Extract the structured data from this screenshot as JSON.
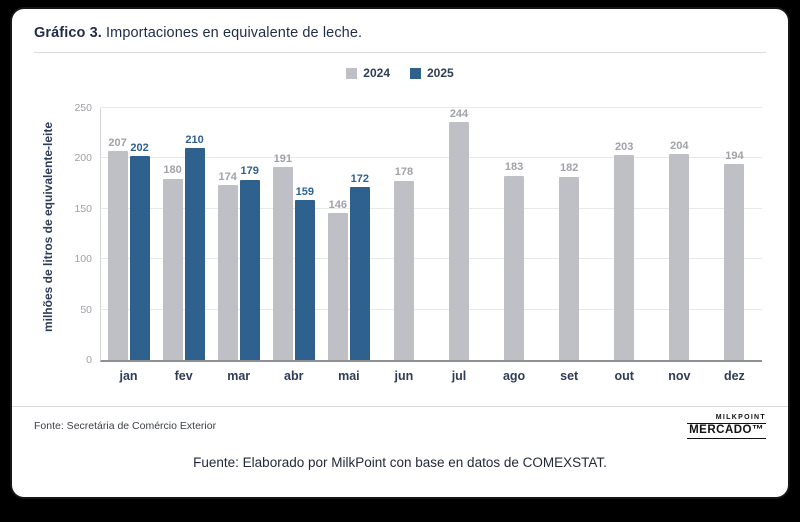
{
  "card": {
    "title_bold": "Gráfico 3.",
    "title_rest": " Importaciones en equivalente de leche.",
    "source_note": "Fonte: Secretária de Comércio Exterior",
    "caption": "Fuente: Elaborado por MilkPoint con base en datos de COMEXSTAT.",
    "logo": {
      "top": "MILKPOINT",
      "bottom": "MERCADO™"
    }
  },
  "chart_data": {
    "type": "bar",
    "title": "Gráfico 3. Importaciones en equivalente de leche.",
    "categories": [
      "jan",
      "fev",
      "mar",
      "abr",
      "mai",
      "jun",
      "jul",
      "ago",
      "set",
      "out",
      "nov",
      "dez"
    ],
    "series": [
      {
        "name": "2024",
        "color": "#bfc0c5",
        "label_color": "#a0a2a8",
        "values": [
          207,
          180,
          174,
          191,
          146,
          178,
          244,
          183,
          182,
          203,
          204,
          194
        ]
      },
      {
        "name": "2025",
        "color": "#2f618f",
        "label_color": "#2f618f",
        "values": [
          202,
          210,
          179,
          159,
          172,
          null,
          null,
          null,
          null,
          null,
          null,
          null
        ]
      }
    ],
    "xlabel": "",
    "ylabel": "milhões de litros de equivalente-leite",
    "ylim": [
      0,
      250
    ],
    "yticks": [
      0,
      50,
      100,
      150,
      200,
      250
    ],
    "grid": true,
    "legend_position": "top-center"
  }
}
